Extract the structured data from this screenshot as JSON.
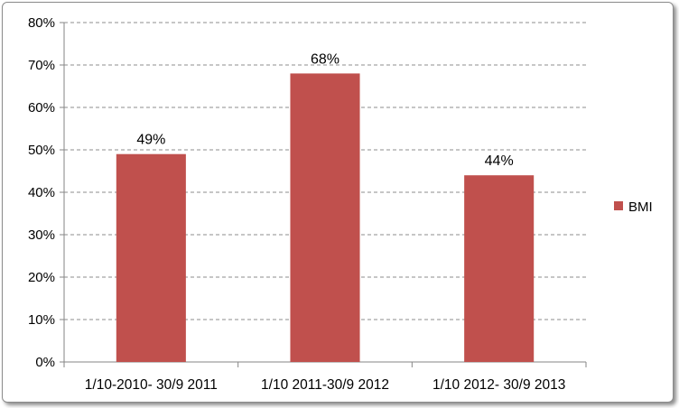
{
  "chart_data": {
    "type": "bar",
    "categories": [
      "1/10-2010- 30/9 2011",
      "1/10 2011-30/9 2012",
      "1/10 2012- 30/9 2013"
    ],
    "series": [
      {
        "name": "BMI",
        "values": [
          49,
          68,
          44
        ],
        "color": "#c0504d"
      }
    ],
    "data_labels": [
      "49%",
      "68%",
      "44%"
    ],
    "y_ticks": [
      "0%",
      "10%",
      "20%",
      "30%",
      "40%",
      "50%",
      "60%",
      "70%",
      "80%"
    ],
    "ylim": [
      0,
      80
    ],
    "y_unit": "%",
    "grid": "horizontal dashed",
    "legend": {
      "position": "right",
      "label": "BMI"
    }
  }
}
